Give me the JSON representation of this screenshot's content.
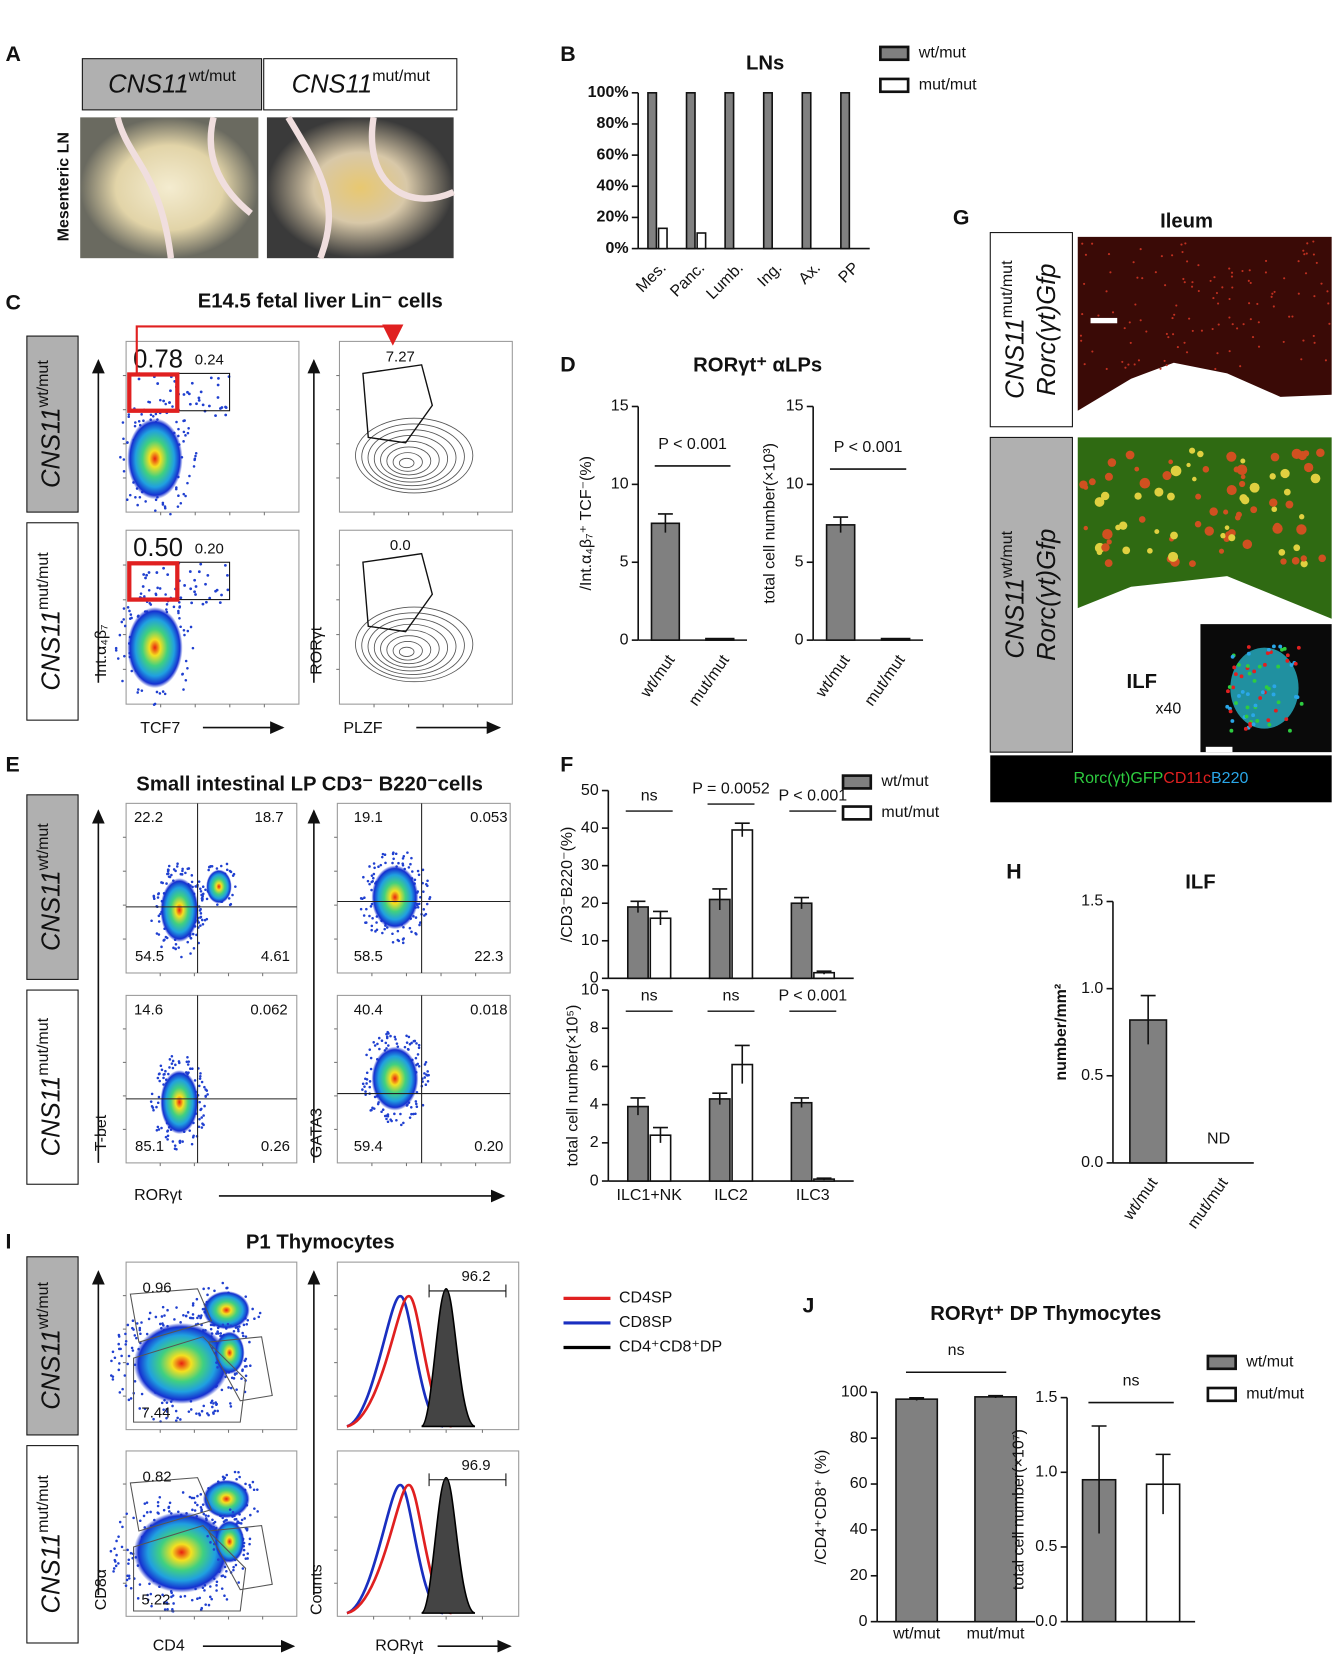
{
  "panels": {
    "A": {
      "label": "A",
      "genotypes": [
        {
          "gene": "CNS11",
          "genotype": "wt/mut"
        },
        {
          "gene": "CNS11",
          "genotype": "mut/mut"
        }
      ],
      "tissue": "Mesenteric LN"
    },
    "B": {
      "label": "B"
    },
    "C": {
      "label": "C",
      "title": "E14.5 fetal liver Lin⁻ cells",
      "rows": [
        {
          "gene": "CNS11",
          "genotype": "wt/mut"
        },
        {
          "gene": "CNS11",
          "genotype": "mut/mut"
        }
      ],
      "gates": [
        [
          "0.78",
          "0.24",
          "7.27"
        ],
        [
          "0.50",
          "0.20",
          "0.0"
        ]
      ],
      "x_labels": [
        "TCF7",
        "PLZF"
      ],
      "y_labels": [
        "Int.α₄β₇",
        "RORγt"
      ]
    },
    "D": {
      "label": "D"
    },
    "E": {
      "label": "E",
      "title": "Small intestinal LP CD3⁻ B220⁻cells",
      "rows": [
        {
          "gene": "CNS11",
          "genotype": "wt/mut"
        },
        {
          "gene": "CNS11",
          "genotype": "mut/mut"
        }
      ],
      "quadrants": [
        [
          [
            "22.2",
            "18.7",
            "54.5",
            "4.61"
          ],
          [
            "19.1",
            "0.053",
            "58.5",
            "22.3"
          ]
        ],
        [
          [
            "14.6",
            "0.062",
            "85.1",
            "0.26"
          ],
          [
            "40.4",
            "0.018",
            "59.4",
            "0.20"
          ]
        ]
      ],
      "x_label": "RORγt",
      "y_labels": [
        "T-bet",
        "GATA3"
      ]
    },
    "F": {
      "label": "F"
    },
    "G": {
      "label": "G",
      "title": "Ileum",
      "rows": [
        {
          "gene": "CNS11",
          "genotype": "mut/mut",
          "reporter": "Rorc(γt)Gfp"
        },
        {
          "gene": "CNS11",
          "genotype": "wt/mut",
          "reporter": "Rorc(γt)Gfp"
        }
      ],
      "inset": "ILF",
      "magnification": "x40",
      "stains": [
        {
          "name": "Rorc(γt)GFP",
          "color": "#2ecc40"
        },
        {
          "name": "CD11c",
          "color": "#e02020"
        },
        {
          "name": "B220",
          "color": "#2aa7e8"
        }
      ]
    },
    "H": {
      "label": "H"
    },
    "I": {
      "label": "I",
      "title": "P1 Thymocytes",
      "rows": [
        {
          "gene": "CNS11",
          "genotype": "wt/mut"
        },
        {
          "gene": "CNS11",
          "genotype": "mut/mut"
        }
      ],
      "gates": [
        [
          "0.96",
          "7.44",
          "96.2"
        ],
        [
          "0.82",
          "5.22",
          "96.9"
        ]
      ],
      "x_labels": [
        "CD4",
        "RORγt"
      ],
      "y_labels": [
        "CD8α",
        "Counts"
      ],
      "legend": [
        {
          "name": "CD4SP",
          "color": "#e02020"
        },
        {
          "name": "CD8SP",
          "color": "#1a2fc0"
        },
        {
          "name": "CD4⁺CD8⁺DP",
          "color": "#000000"
        }
      ]
    },
    "J": {
      "label": "J"
    }
  },
  "chart_data": [
    {
      "type": "bar",
      "title": "LNs",
      "categories": [
        "Mes.",
        "Panc.",
        "Lumb.",
        "Ing.",
        "Ax.",
        "PP"
      ],
      "series": [
        {
          "name": "wt/mut",
          "color": "#808080",
          "values": [
            100,
            100,
            100,
            100,
            100,
            100
          ]
        },
        {
          "name": "mut/mut",
          "color": "#ffffff",
          "values": [
            13,
            10,
            0,
            0,
            0,
            0
          ]
        }
      ],
      "ylim": [
        0,
        100
      ],
      "yticks": [
        {
          "value": 0,
          "label": "0%"
        },
        {
          "value": 20,
          "label": "20%"
        },
        {
          "value": 40,
          "label": "40%"
        },
        {
          "value": 60,
          "label": "60%"
        },
        {
          "value": 80,
          "label": "80%"
        },
        {
          "value": 100,
          "label": "100%"
        }
      ]
    },
    {
      "type": "bar",
      "title": "RORγt⁺ αLPs",
      "ylabel": "/Int.α₄β₇⁺ TCF⁻(%)",
      "categories": [
        "wt/mut",
        "mut/mut"
      ],
      "series": [
        {
          "color": "#808080",
          "values": [
            7.5,
            0.1
          ],
          "errors": [
            0.6,
            0
          ]
        }
      ],
      "ylim": [
        0,
        15
      ],
      "yticks": [
        0,
        5,
        10,
        15
      ],
      "annotations": [
        "P < 0.001"
      ]
    },
    {
      "type": "bar",
      "ylabel": "total cell number(×10³)",
      "categories": [
        "wt/mut",
        "mut/mut"
      ],
      "series": [
        {
          "color": "#808080",
          "values": [
            7.4,
            0.1
          ],
          "errors": [
            0.5,
            0
          ]
        }
      ],
      "ylim": [
        0,
        15
      ],
      "yticks": [
        0,
        5,
        10,
        15
      ],
      "annotations": [
        "P < 0.001"
      ]
    },
    {
      "type": "bar",
      "ylabel": "/CD3⁻B220⁻(%)",
      "series": [
        {
          "name": "wt/mut",
          "color": "#808080",
          "values": [
            19,
            21,
            20
          ],
          "errors": [
            1.5,
            2.8,
            1.5
          ]
        },
        {
          "name": "mut/mut",
          "color": "#ffffff",
          "values": [
            16,
            39.5,
            1.5
          ],
          "errors": [
            1.8,
            1.8,
            0.4
          ]
        }
      ],
      "ylim": [
        0,
        50
      ],
      "yticks": [
        0,
        10,
        20,
        30,
        40,
        50
      ],
      "annotations": [
        "ns",
        "P =  0.0052",
        "P < 0.001"
      ]
    },
    {
      "type": "bar",
      "ylabel": "total cell number(×10⁵)",
      "categories": [
        "ILC1+NK",
        "ILC2",
        "ILC3"
      ],
      "series": [
        {
          "color": "#808080",
          "values": [
            3.9,
            4.3,
            4.1
          ],
          "errors": [
            0.45,
            0.3,
            0.25
          ]
        },
        {
          "color": "#ffffff",
          "values": [
            2.4,
            6.1,
            0.1
          ],
          "errors": [
            0.4,
            1,
            0.05
          ]
        }
      ],
      "ylim": [
        0,
        10
      ],
      "yticks": [
        0,
        2,
        4,
        6,
        8,
        10
      ],
      "annotations": [
        "ns",
        "ns",
        "P < 0.001"
      ]
    },
    {
      "type": "bar",
      "title": "ILF",
      "ylabel": "number/mm²",
      "categories": [
        "wt/mut",
        "mut/mut"
      ],
      "series": [
        {
          "color": "#808080",
          "values": [
            0.82,
            null
          ],
          "errors": [
            0.14,
            null
          ]
        }
      ],
      "ylim": [
        0,
        1.5
      ],
      "yticks": [
        {
          "value": 0,
          "label": "0.0"
        },
        {
          "value": 0.5,
          "label": "0.5"
        },
        {
          "value": 1,
          "label": "1.0"
        },
        {
          "value": 1.5,
          "label": "1.5"
        }
      ],
      "annotations": [
        "ND"
      ]
    },
    {
      "type": "bar",
      "title": "RORγt⁺ DP Thymocytes",
      "ylabel": "/CD4⁺CD8⁺ (%)",
      "categories": [
        "wt/mut",
        "mut/mut"
      ],
      "series": [
        {
          "color": "#808080",
          "values": [
            97,
            98
          ],
          "errors": [
            0.6,
            0.5
          ]
        }
      ],
      "ylim": [
        0,
        100
      ],
      "yticks": [
        0,
        20,
        40,
        60,
        80,
        100
      ],
      "annotations": [
        "ns"
      ]
    },
    {
      "type": "bar",
      "ylabel": "total cell number(×10⁷)",
      "series": [
        {
          "name": "wt/mut",
          "color": "#808080",
          "values": [
            0.95,
            null
          ],
          "errors": [
            0.36,
            null
          ]
        },
        {
          "name": "mut/mut",
          "color": "#ffffff",
          "values": [
            null,
            0.92
          ],
          "errors": [
            null,
            0.2
          ]
        }
      ],
      "ylim": [
        0,
        1.5
      ],
      "yticks": [
        {
          "value": 0,
          "label": "0.0"
        },
        {
          "value": 0.5,
          "label": "0.5"
        },
        {
          "value": 1,
          "label": "1.0"
        },
        {
          "value": 1.5,
          "label": "1.5"
        }
      ],
      "annotations": [
        "ns"
      ]
    }
  ]
}
